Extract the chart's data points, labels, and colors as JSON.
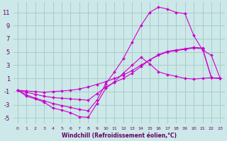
{
  "xlabel": "Windchill (Refroidissement éolien,°C)",
  "bg_color": "#cce8e8",
  "grid_color": "#aacccc",
  "line_color": "#cc00cc",
  "hours": [
    0,
    1,
    2,
    3,
    4,
    5,
    6,
    7,
    8,
    9,
    10,
    11,
    12,
    13,
    14,
    15,
    16,
    17,
    18,
    19,
    20,
    21,
    22,
    23
  ],
  "line1": [
    -0.8,
    -1.7,
    -2.1,
    -2.6,
    -3.5,
    -3.8,
    -4.2,
    -4.8,
    -4.9,
    -2.8,
    -0.5,
    0.5,
    1.8,
    3.0,
    4.2,
    3.2,
    2.0,
    1.6,
    1.3,
    1.0,
    0.9,
    1.0,
    1.1,
    1.0
  ],
  "line2": [
    -0.8,
    -0.9,
    -1.0,
    -1.1,
    -1.0,
    -0.9,
    -0.8,
    -0.6,
    -0.3,
    0.1,
    0.5,
    1.0,
    1.5,
    2.2,
    3.0,
    3.8,
    4.5,
    5.0,
    5.2,
    5.4,
    5.6,
    5.5,
    1.1,
    1.0
  ],
  "line3": [
    -0.8,
    -1.5,
    -2.0,
    -2.4,
    -2.8,
    -3.1,
    -3.4,
    -3.7,
    -3.9,
    -2.3,
    0.2,
    2.0,
    4.0,
    6.5,
    9.0,
    11.0,
    11.8,
    11.5,
    11.0,
    10.8,
    7.5,
    5.3,
    4.5,
    1.0
  ],
  "line4": [
    -0.8,
    -1.1,
    -1.4,
    -1.7,
    -1.9,
    -2.0,
    -2.1,
    -2.2,
    -2.3,
    -1.3,
    -0.3,
    0.4,
    1.0,
    1.8,
    2.8,
    3.8,
    4.6,
    5.1,
    5.3,
    5.5,
    5.7,
    5.6,
    1.1,
    1.0
  ],
  "ylim": [
    -5.8,
    12.5
  ],
  "yticks": [
    -5,
    -3,
    -1,
    1,
    3,
    5,
    7,
    9,
    11
  ],
  "xlim": [
    -0.5,
    23.5
  ],
  "xticks": [
    0,
    1,
    2,
    3,
    4,
    5,
    6,
    7,
    8,
    9,
    10,
    11,
    12,
    13,
    14,
    15,
    16,
    17,
    18,
    19,
    20,
    21,
    22,
    23
  ],
  "tick_color": "#660066",
  "xlabel_fontsize": 5.5,
  "ytick_fontsize": 6.0,
  "xtick_fontsize": 4.5
}
